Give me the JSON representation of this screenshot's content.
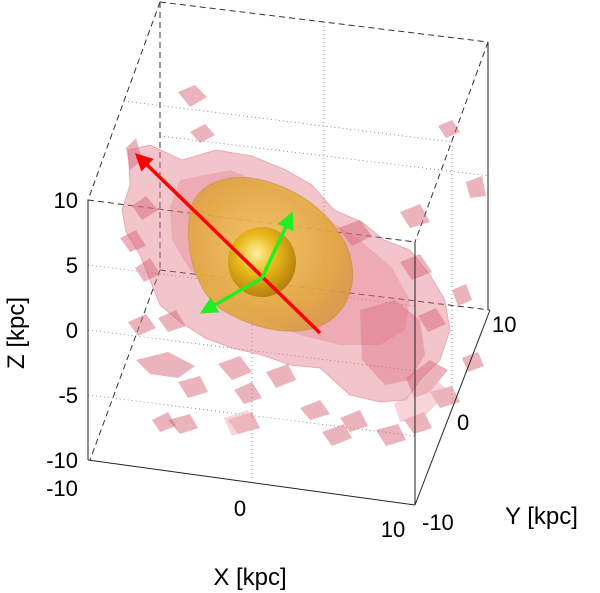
{
  "chart_data": {
    "type": "3d-isosurface",
    "title": "",
    "xlabel": "X [kpc]",
    "ylabel": "Y [kpc]",
    "zlabel": "Z [kpc]",
    "xlim": [
      -10,
      10
    ],
    "ylim": [
      -10,
      10
    ],
    "zlim": [
      -10,
      10
    ],
    "x_ticks": [
      "-10",
      "0",
      "10"
    ],
    "y_ticks": [
      "-10",
      "0",
      "10"
    ],
    "z_ticks": [
      "-10",
      "-5",
      "0",
      "5",
      "10"
    ],
    "grid": true,
    "surfaces": [
      {
        "name": "outer isosurface",
        "color": "#e07080",
        "shape": "irregular elongated cloud"
      },
      {
        "name": "middle isosurface",
        "color": "#e8b030",
        "shape": "ellipsoid"
      },
      {
        "name": "inner isosurface",
        "color": "#d8a010",
        "shape": "sphere"
      }
    ],
    "vectors": [
      {
        "name": "major axis",
        "color": "#ff0000"
      },
      {
        "name": "minor axis 1",
        "color": "#22ee22"
      },
      {
        "name": "minor axis 2",
        "color": "#22ee22"
      }
    ]
  }
}
